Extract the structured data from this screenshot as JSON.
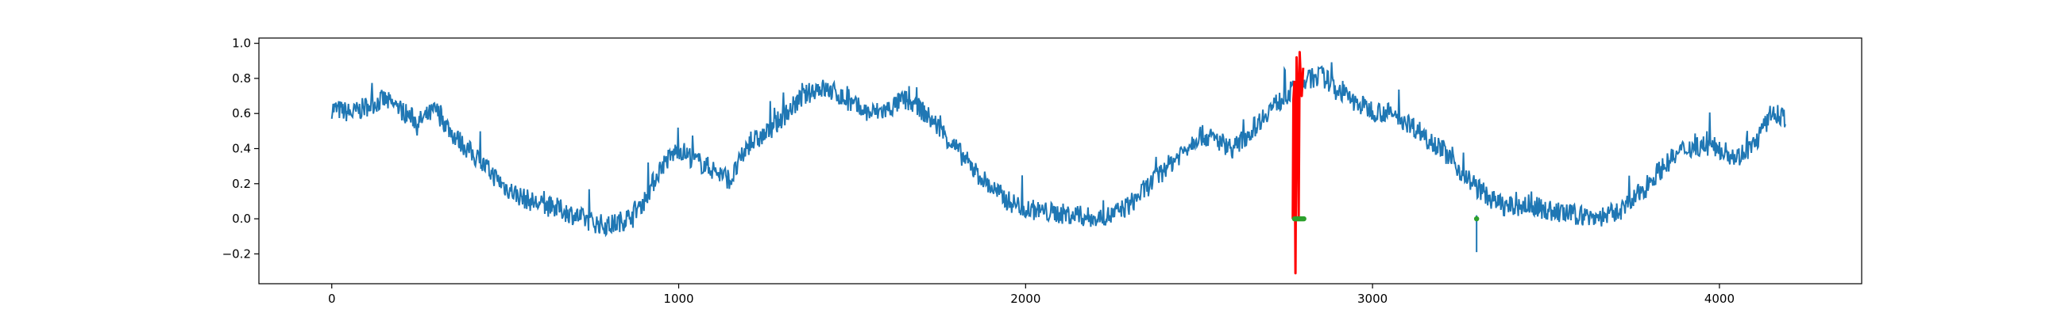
{
  "chart_data": {
    "type": "line",
    "title": "",
    "xlabel": "",
    "ylabel": "",
    "xlim": [
      -210,
      4410
    ],
    "ylim": [
      -0.37,
      1.03
    ],
    "grid": false,
    "legend": "none",
    "x_ticks": [
      0,
      1000,
      2000,
      3000,
      4000
    ],
    "x_tick_labels": [
      "0",
      "1000",
      "2000",
      "3000",
      "4000"
    ],
    "y_ticks": [
      -0.2,
      0.0,
      0.2,
      0.4,
      0.6,
      0.8,
      1.0
    ],
    "y_tick_labels": [
      "−0.2",
      "0.0",
      "0.2",
      "0.4",
      "0.6",
      "0.8",
      "1.0"
    ],
    "series": [
      {
        "color": "#1f77b4",
        "points": [
          [
            0,
            0.63
          ],
          [
            60,
            0.6
          ],
          [
            100,
            0.64
          ],
          [
            150,
            0.68
          ],
          [
            200,
            0.62
          ],
          [
            250,
            0.55
          ],
          [
            300,
            0.62
          ],
          [
            350,
            0.48
          ],
          [
            400,
            0.38
          ],
          [
            450,
            0.28
          ],
          [
            500,
            0.18
          ],
          [
            550,
            0.12
          ],
          [
            600,
            0.08
          ],
          [
            650,
            0.06
          ],
          [
            700,
            0.02
          ],
          [
            750,
            -0.02
          ],
          [
            800,
            -0.04
          ],
          [
            850,
            0.0
          ],
          [
            900,
            0.1
          ],
          [
            950,
            0.3
          ],
          [
            1000,
            0.4
          ],
          [
            1050,
            0.33
          ],
          [
            1100,
            0.28
          ],
          [
            1150,
            0.22
          ],
          [
            1200,
            0.42
          ],
          [
            1250,
            0.48
          ],
          [
            1300,
            0.58
          ],
          [
            1350,
            0.68
          ],
          [
            1400,
            0.75
          ],
          [
            1450,
            0.72
          ],
          [
            1500,
            0.65
          ],
          [
            1550,
            0.6
          ],
          [
            1600,
            0.62
          ],
          [
            1650,
            0.68
          ],
          [
            1700,
            0.62
          ],
          [
            1750,
            0.52
          ],
          [
            1800,
            0.4
          ],
          [
            1850,
            0.28
          ],
          [
            1900,
            0.18
          ],
          [
            1950,
            0.1
          ],
          [
            2000,
            0.06
          ],
          [
            2050,
            0.04
          ],
          [
            2100,
            0.03
          ],
          [
            2150,
            0.02
          ],
          [
            2200,
            0.0
          ],
          [
            2250,
            0.02
          ],
          [
            2300,
            0.08
          ],
          [
            2350,
            0.18
          ],
          [
            2400,
            0.28
          ],
          [
            2450,
            0.38
          ],
          [
            2500,
            0.48
          ],
          [
            2550,
            0.45
          ],
          [
            2600,
            0.4
          ],
          [
            2650,
            0.5
          ],
          [
            2700,
            0.62
          ],
          [
            2750,
            0.7
          ],
          [
            2800,
            0.78
          ],
          [
            2850,
            0.82
          ],
          [
            2900,
            0.74
          ],
          [
            2950,
            0.66
          ],
          [
            3000,
            0.62
          ],
          [
            3050,
            0.6
          ],
          [
            3100,
            0.55
          ],
          [
            3150,
            0.48
          ],
          [
            3200,
            0.4
          ],
          [
            3250,
            0.28
          ],
          [
            3300,
            0.18
          ],
          [
            3350,
            0.1
          ],
          [
            3400,
            0.06
          ],
          [
            3450,
            0.08
          ],
          [
            3500,
            0.05
          ],
          [
            3550,
            0.03
          ],
          [
            3600,
            0.02
          ],
          [
            3650,
            0.01
          ],
          [
            3700,
            0.03
          ],
          [
            3750,
            0.1
          ],
          [
            3800,
            0.22
          ],
          [
            3850,
            0.32
          ],
          [
            3900,
            0.4
          ],
          [
            3950,
            0.42
          ],
          [
            4000,
            0.4
          ],
          [
            4050,
            0.35
          ],
          [
            4100,
            0.42
          ],
          [
            4150,
            0.6
          ],
          [
            4190,
            0.58
          ]
        ],
        "noise_amplitude": 0.06
      },
      {
        "color": "#ff0000",
        "points": [
          [
            2770,
            0.0
          ],
          [
            2772,
            0.68
          ],
          [
            2775,
            0.78
          ],
          [
            2778,
            -0.31
          ],
          [
            2781,
            0.92
          ],
          [
            2784,
            0.76
          ],
          [
            2787,
            0.0
          ],
          [
            2790,
            0.95
          ],
          [
            2793,
            0.8
          ],
          [
            2796,
            0.7
          ],
          [
            2800,
            0.86
          ]
        ]
      }
    ],
    "markers": {
      "color": "#2ca02c",
      "points": [
        [
          2775,
          0.0
        ],
        [
          2778,
          0.0
        ],
        [
          2781,
          0.0
        ],
        [
          2784,
          0.0
        ],
        [
          2787,
          0.0
        ],
        [
          2790,
          0.0
        ],
        [
          2793,
          0.0
        ],
        [
          2796,
          0.0
        ],
        [
          2799,
          0.0
        ],
        [
          2802,
          0.0
        ],
        [
          3300,
          0.0
        ]
      ]
    },
    "spikes": [
      {
        "x": 3300,
        "y": -0.19
      }
    ]
  }
}
